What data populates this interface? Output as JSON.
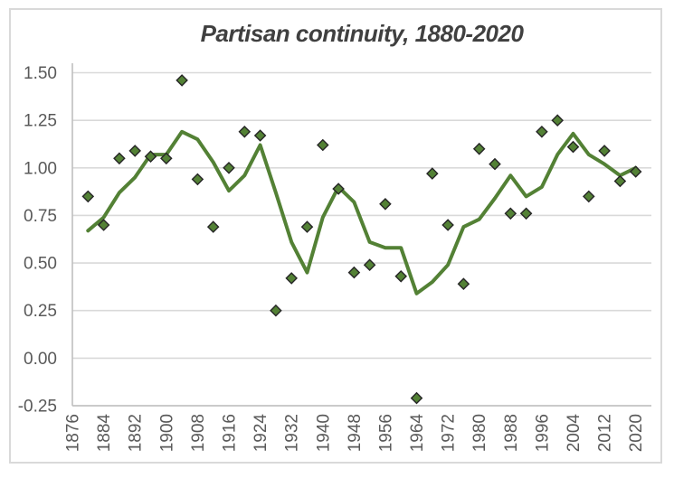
{
  "chart_data": {
    "type": "line",
    "title": "Partisan continuity, 1880-2020",
    "xlabel": "",
    "ylabel": "",
    "x_start": 1876,
    "x_end": 2024,
    "x_tick_step_years": 8,
    "x_tick_labels": [
      "1876",
      "1884",
      "1892",
      "1900",
      "1908",
      "1916",
      "1924",
      "1932",
      "1940",
      "1948",
      "1956",
      "1964",
      "1972",
      "1980",
      "1988",
      "1996",
      "2004",
      "2012",
      "2020"
    ],
    "y_ticks": [
      1.5,
      1.25,
      1.0,
      0.75,
      0.5,
      0.25,
      0.0,
      -0.25
    ],
    "ylim": [
      -0.25,
      1.55
    ],
    "grid": true,
    "legend": "none",
    "years": [
      1880,
      1884,
      1888,
      1892,
      1896,
      1900,
      1904,
      1908,
      1912,
      1916,
      1920,
      1924,
      1928,
      1932,
      1936,
      1940,
      1944,
      1948,
      1952,
      1956,
      1960,
      1964,
      1968,
      1972,
      1976,
      1980,
      1984,
      1988,
      1992,
      1996,
      2000,
      2004,
      2008,
      2012,
      2016,
      2020
    ],
    "series": [
      {
        "name": "partisan-continuity-points",
        "type": "scatter",
        "marker": "diamond",
        "values": [
          0.85,
          0.7,
          1.05,
          1.09,
          1.06,
          1.05,
          1.46,
          0.94,
          0.69,
          1.0,
          1.19,
          1.17,
          0.25,
          0.42,
          0.69,
          1.12,
          0.89,
          0.45,
          0.49,
          0.81,
          0.43,
          -0.21,
          0.97,
          0.7,
          0.39,
          1.1,
          1.02,
          0.76,
          0.76,
          1.19,
          1.25,
          1.11,
          0.85,
          1.09,
          0.93,
          0.98
        ]
      },
      {
        "name": "three-election-moving-average",
        "type": "line",
        "values": [
          0.67,
          0.74,
          0.87,
          0.95,
          1.07,
          1.07,
          1.19,
          1.15,
          1.03,
          0.88,
          0.96,
          1.12,
          0.87,
          0.61,
          0.45,
          0.74,
          0.9,
          0.82,
          0.61,
          0.58,
          0.58,
          0.34,
          0.4,
          0.49,
          0.69,
          0.73,
          0.84,
          0.96,
          0.85,
          0.9,
          1.07,
          1.18,
          1.07,
          1.02,
          0.96,
          1.0
        ]
      }
    ],
    "colors": {
      "series_green": "#538135",
      "marker_outline": "#262626",
      "gridline": "#D9D9D9",
      "axis_line": "#BFBFBF",
      "tick_label": "#595959",
      "title": "#404040",
      "frame_border": "#D9D9D9",
      "background": "#FFFFFF"
    }
  }
}
